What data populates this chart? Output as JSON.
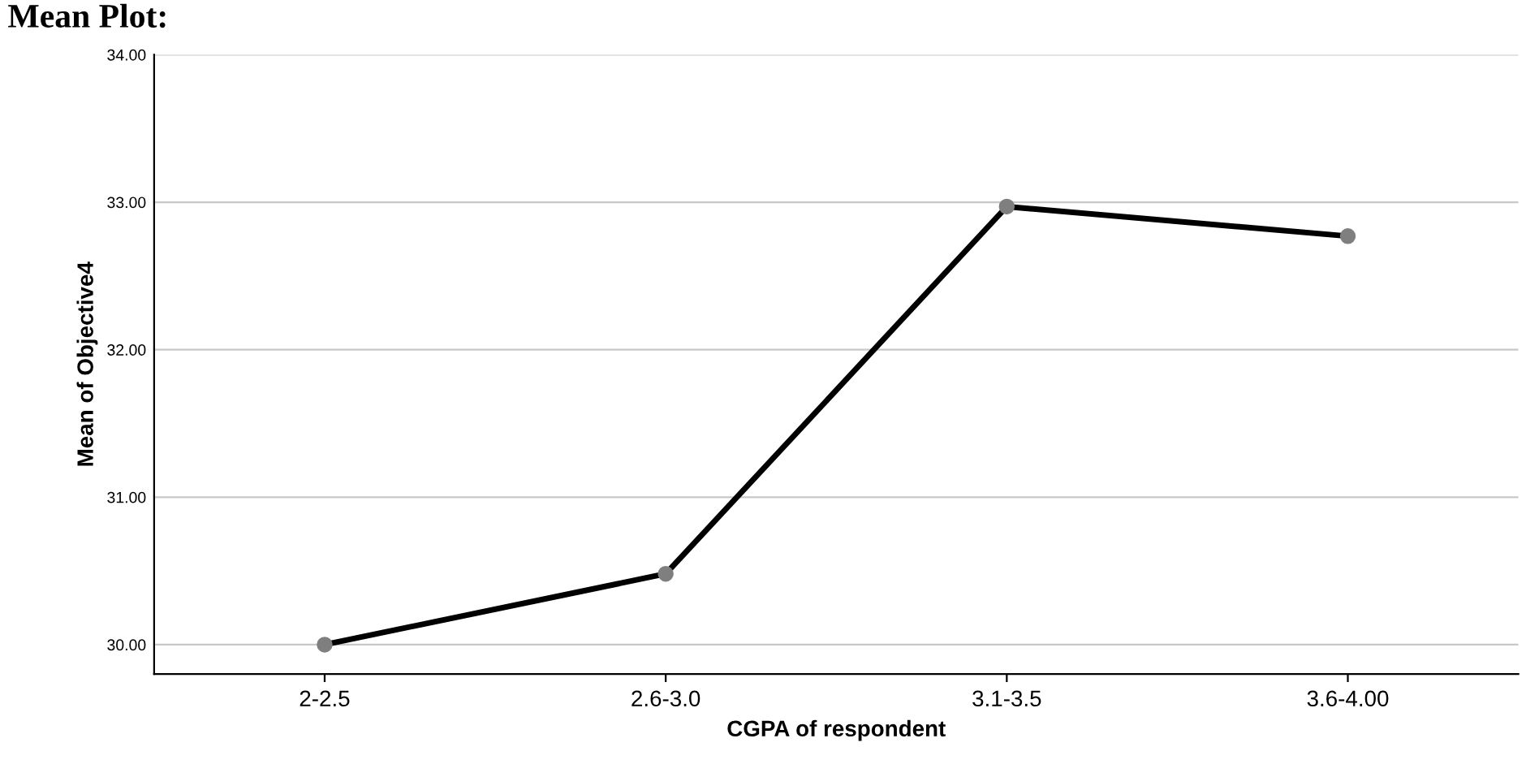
{
  "chart_data": {
    "type": "line",
    "title": "Mean Plot:",
    "xlabel": "CGPA of respondent",
    "ylabel": "Mean of Objective4",
    "categories": [
      "2-2.5",
      "2.6-3.0",
      "3.1-3.5",
      "3.6-4.00"
    ],
    "series": [
      {
        "color": "#000000",
        "values": [
          30.0,
          30.48,
          32.97,
          32.77
        ]
      }
    ],
    "ylim": [
      29.8,
      34.0
    ],
    "yticks": [
      {
        "value": 30,
        "label": "30.00"
      },
      {
        "value": 31,
        "label": "31.00"
      },
      {
        "value": 32,
        "label": "32.00"
      },
      {
        "value": 33,
        "label": "33.00"
      },
      {
        "value": 34,
        "label": "34.00"
      }
    ],
    "grid": "y",
    "marker": "circle",
    "line_style": "solid"
  }
}
